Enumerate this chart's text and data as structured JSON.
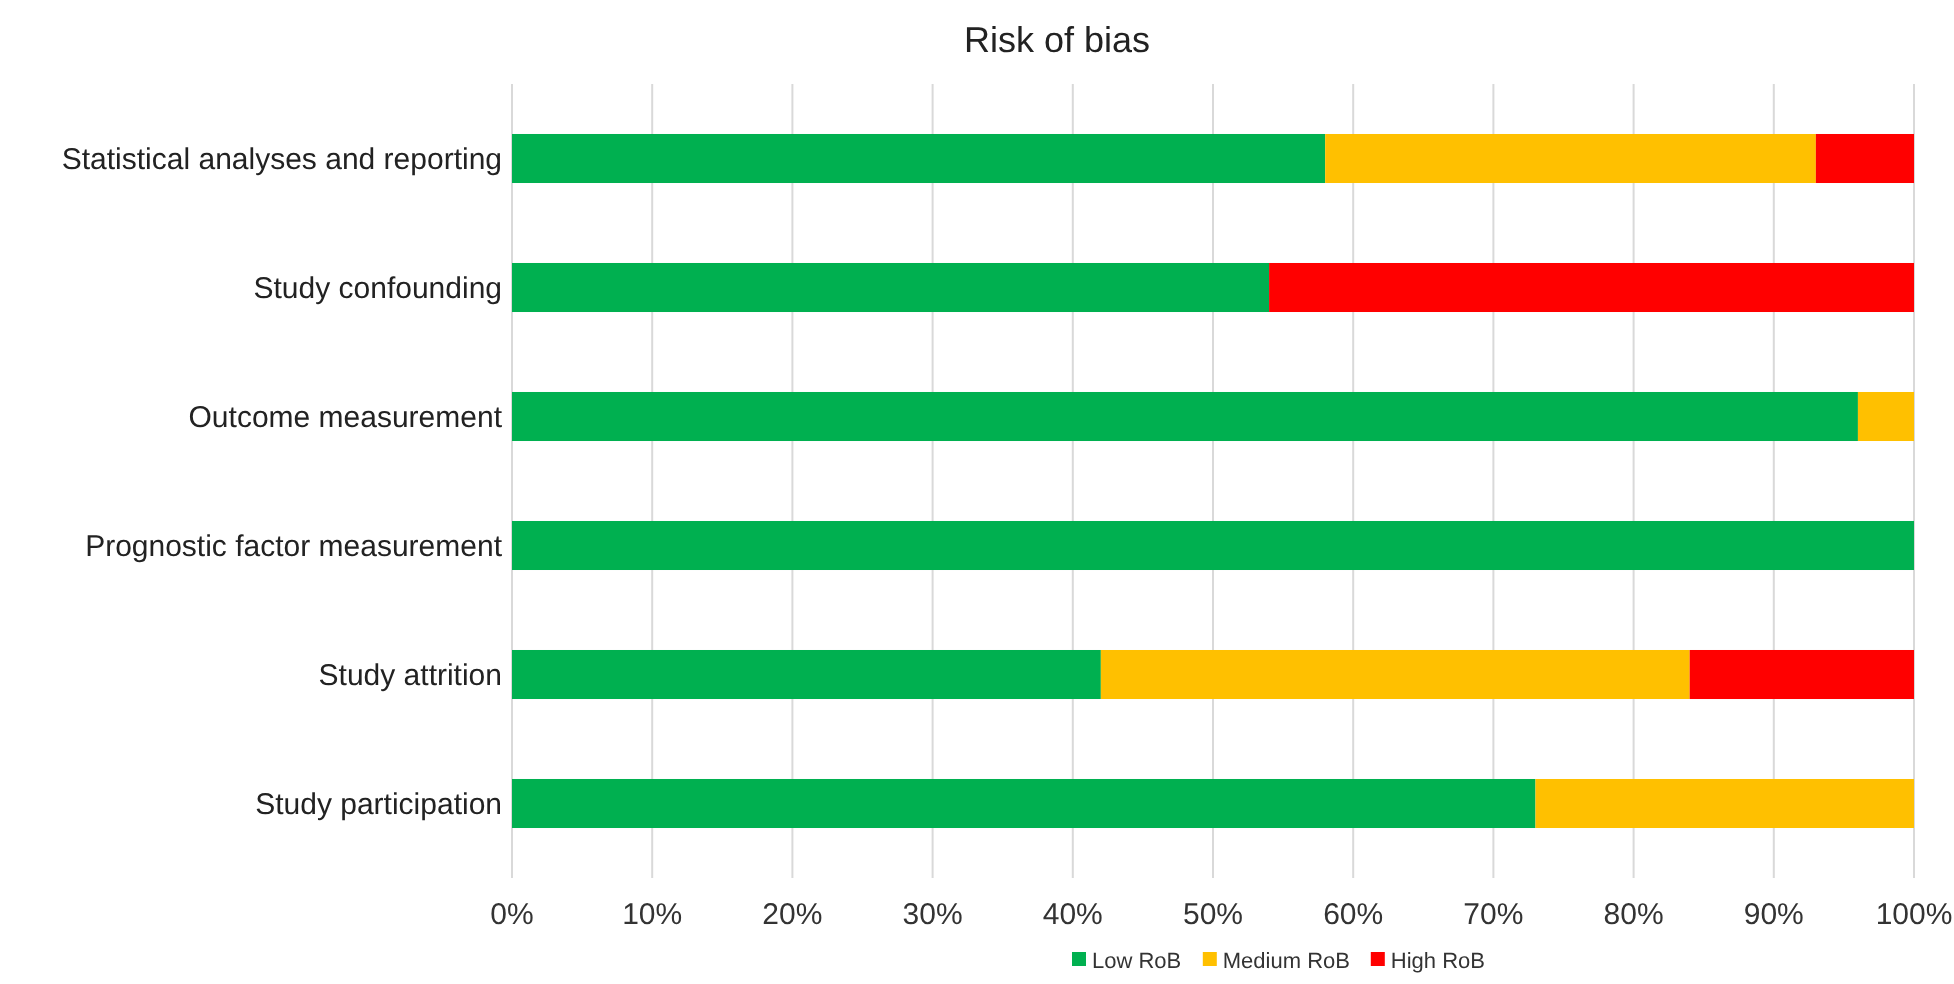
{
  "chart_data": {
    "type": "bar",
    "title": "Risk of bias",
    "orientation": "horizontal",
    "stacked": true,
    "categories": [
      "Statistical analyses and reporting",
      "Study confounding",
      "Outcome measurement",
      "Prognostic factor measurement",
      "Study attrition",
      "Study participation"
    ],
    "series": [
      {
        "name": "Low RoB",
        "color": "#00b050",
        "values": [
          58,
          54,
          96,
          100,
          42,
          73
        ]
      },
      {
        "name": "Medium RoB",
        "color": "#ffc000",
        "values": [
          35,
          0,
          4,
          0,
          42,
          27
        ]
      },
      {
        "name": "High RoB",
        "color": "#ff0000",
        "values": [
          7,
          46,
          0,
          0,
          16,
          0
        ]
      }
    ],
    "xlim": [
      0,
      100
    ],
    "xticks": [
      {
        "value": 0,
        "label": "0%"
      },
      {
        "value": 10,
        "label": "10%"
      },
      {
        "value": 20,
        "label": "20%"
      },
      {
        "value": 30,
        "label": "30%"
      },
      {
        "value": 40,
        "label": "40%"
      },
      {
        "value": 50,
        "label": "50%"
      },
      {
        "value": 60,
        "label": "60%"
      },
      {
        "value": 70,
        "label": "70%"
      },
      {
        "value": 80,
        "label": "80%"
      },
      {
        "value": 90,
        "label": "90%"
      },
      {
        "value": 100,
        "label": "100%"
      }
    ],
    "grid": "x",
    "legend": "bottom"
  }
}
